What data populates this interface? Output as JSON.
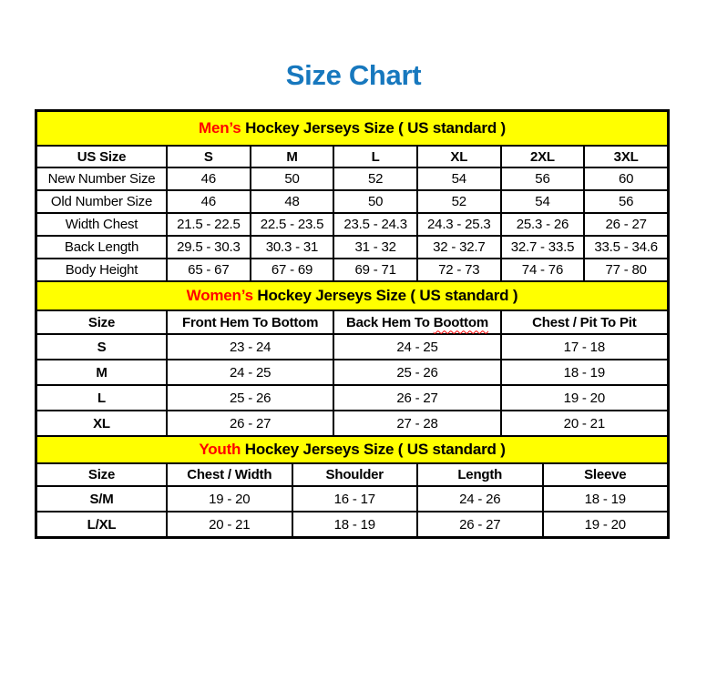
{
  "page": {
    "title": "Size Chart"
  },
  "colors": {
    "title_blue": "#1778be",
    "band_yellow": "#ffff00",
    "accent_red": "#ff0000",
    "border_black": "#000000"
  },
  "sections": {
    "mens": {
      "band": {
        "highlight": "Men’s",
        "rest": " Hockey Jerseys Size ( US standard )"
      },
      "columns": [
        "US Size",
        "S",
        "M",
        "L",
        "XL",
        "2XL",
        "3XL"
      ],
      "rows": [
        {
          "label": "New Number Size",
          "values": [
            "46",
            "50",
            "52",
            "54",
            "56",
            "60"
          ]
        },
        {
          "label": "Old Number Size",
          "values": [
            "46",
            "48",
            "50",
            "52",
            "54",
            "56"
          ]
        },
        {
          "label": "Width Chest",
          "values": [
            "21.5 - 22.5",
            "22.5 - 23.5",
            "23.5 - 24.3",
            "24.3 - 25.3",
            "25.3 - 26",
            "26 - 27"
          ]
        },
        {
          "label": "Back Length",
          "values": [
            "29.5 - 30.3",
            "30.3 - 31",
            "31 - 32",
            "32 - 32.7",
            "32.7 - 33.5",
            "33.5 - 34.6"
          ]
        },
        {
          "label": "Body Height",
          "values": [
            "65 - 67",
            "67 - 69",
            "69 - 71",
            "72 - 73",
            "74 - 76",
            "77 - 80"
          ]
        }
      ]
    },
    "womens": {
      "band": {
        "highlight": "Women’s",
        "rest": " Hockey Jerseys Size ( US standard )"
      },
      "columns": [
        "Size",
        "Front Hem To Bottom",
        "Back Hem To Boottom",
        "Chest / Pit To Pit"
      ],
      "misspell": {
        "column_index": 2,
        "prefix": "Back Hem To ",
        "word": "Boottom"
      },
      "rows": [
        {
          "label": "S",
          "values": [
            "23 - 24",
            "24 - 25",
            "17 - 18"
          ]
        },
        {
          "label": "M",
          "values": [
            "24 - 25",
            "25 - 26",
            "18 - 19"
          ]
        },
        {
          "label": "L",
          "values": [
            "25 - 26",
            "26 - 27",
            "19 - 20"
          ]
        },
        {
          "label": "XL",
          "values": [
            "26 - 27",
            "27 - 28",
            "20 - 21"
          ]
        }
      ]
    },
    "youth": {
      "band": {
        "highlight": "Youth",
        "rest": " Hockey Jerseys Size ( US standard )"
      },
      "columns": [
        "Size",
        "Chest / Width",
        "Shoulder",
        "Length",
        "Sleeve"
      ],
      "rows": [
        {
          "label": "S/M",
          "values": [
            "19 - 20",
            "16 - 17",
            "24 - 26",
            "18 - 19"
          ]
        },
        {
          "label": "L/XL",
          "values": [
            "20 - 21",
            "18 - 19",
            "26 - 27",
            "19 - 20"
          ]
        }
      ]
    }
  }
}
